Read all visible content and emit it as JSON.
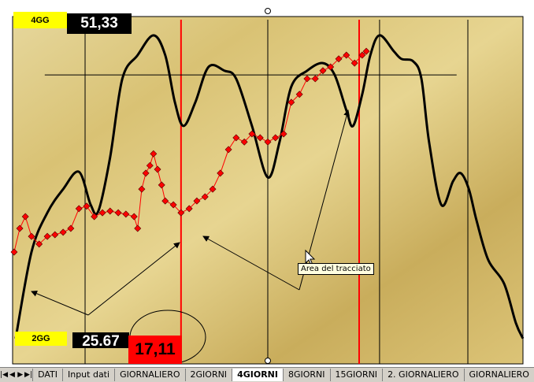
{
  "labels": {
    "top_tag": "4GG",
    "top_value": "51,33",
    "bottom_tag": "2GG",
    "bottom_value": "25.67",
    "highlight_value": "17,11"
  },
  "tooltip": "Area del tracciato",
  "tabs": [
    "DATI",
    "Input dati",
    "GIORNALIERO",
    "2GIORNI",
    "4GIORNI",
    "8GIORNI",
    "15GIORNI",
    "2.  GIORNALIERO",
    "GIORNALIERO"
  ],
  "active_tab": "4GIORNI",
  "colors": {
    "tag": "#ffff00",
    "value_bg": "#000000",
    "highlight": "#ff0000",
    "curve": "#000000",
    "markers": "#ff0000",
    "background": "#d9c274"
  },
  "chart_data": {
    "type": "line",
    "title": "",
    "axes_visible": false,
    "xlim": [
      0,
      100
    ],
    "ylim": [
      0,
      100
    ],
    "series": [
      {
        "style": "line",
        "color": "#000000",
        "points": [
          [
            0.6,
            7.3
          ],
          [
            3.7,
            32.2
          ],
          [
            6.8,
            43.5
          ],
          [
            9.9,
            50.3
          ],
          [
            13,
            55.3
          ],
          [
            15.3,
            45.8
          ],
          [
            16.8,
            44
          ],
          [
            19.1,
            59.4
          ],
          [
            21.5,
            82.1
          ],
          [
            24.5,
            88.9
          ],
          [
            27.6,
            94.6
          ],
          [
            29.9,
            88.9
          ],
          [
            31.8,
            75.3
          ],
          [
            33.5,
            68.5
          ],
          [
            35.8,
            75.3
          ],
          [
            38.4,
            85.5
          ],
          [
            41.5,
            84.4
          ],
          [
            43.8,
            82.1
          ],
          [
            46.9,
            68.5
          ],
          [
            50,
            53.7
          ],
          [
            52.3,
            63.9
          ],
          [
            54.6,
            79.8
          ],
          [
            57.7,
            84.4
          ],
          [
            60.8,
            86.6
          ],
          [
            63.1,
            83.2
          ],
          [
            65.4,
            73
          ],
          [
            66.7,
            68.5
          ],
          [
            68.5,
            77.6
          ],
          [
            70.1,
            88.9
          ],
          [
            71.9,
            94.6
          ],
          [
            74.7,
            90
          ],
          [
            76.2,
            87.8
          ],
          [
            78.5,
            87.1
          ],
          [
            80.1,
            82.1
          ],
          [
            81.6,
            63.9
          ],
          [
            84,
            45.8
          ],
          [
            86.3,
            52.6
          ],
          [
            87.8,
            54.9
          ],
          [
            89.4,
            50.3
          ],
          [
            90.9,
            41.3
          ],
          [
            93.2,
            29.9
          ],
          [
            96.3,
            23.1
          ],
          [
            98.6,
            11.8
          ],
          [
            100,
            7.3
          ]
        ]
      },
      {
        "style": "diamond-markers",
        "color": "#ff0000",
        "points": [
          [
            0.3,
            32.2
          ],
          [
            1.4,
            39
          ],
          [
            2.5,
            42.4
          ],
          [
            3.7,
            36.7
          ],
          [
            5.2,
            34.5
          ],
          [
            6.8,
            36.7
          ],
          [
            8.3,
            37.2
          ],
          [
            9.9,
            37.9
          ],
          [
            11.4,
            39
          ],
          [
            13,
            44.7
          ],
          [
            14.5,
            45.4
          ],
          [
            16,
            42.4
          ],
          [
            17.6,
            43.5
          ],
          [
            19.1,
            44
          ],
          [
            20.7,
            43.5
          ],
          [
            22.2,
            43.1
          ],
          [
            23.8,
            42.4
          ],
          [
            24.5,
            39
          ],
          [
            25.3,
            50.3
          ],
          [
            26.1,
            54.9
          ],
          [
            26.9,
            57.1
          ],
          [
            27.6,
            60.5
          ],
          [
            28.4,
            56
          ],
          [
            29.2,
            51.5
          ],
          [
            29.9,
            46.9
          ],
          [
            31.5,
            45.8
          ],
          [
            33,
            43.5
          ],
          [
            34.6,
            44.7
          ],
          [
            36.1,
            46.9
          ],
          [
            37.7,
            48.1
          ],
          [
            39.2,
            50.3
          ],
          [
            40.7,
            54.9
          ],
          [
            42.3,
            61.7
          ],
          [
            43.8,
            65.1
          ],
          [
            45.4,
            63.9
          ],
          [
            46.9,
            66.2
          ],
          [
            48.5,
            65.1
          ],
          [
            50,
            63.9
          ],
          [
            51.5,
            65.1
          ],
          [
            53.1,
            66.2
          ],
          [
            54.6,
            75.3
          ],
          [
            56.2,
            77.6
          ],
          [
            57.7,
            82.1
          ],
          [
            59.3,
            82.1
          ],
          [
            60.8,
            84.4
          ],
          [
            62.3,
            85.5
          ],
          [
            63.9,
            87.8
          ],
          [
            65.4,
            88.9
          ],
          [
            67,
            86.6
          ],
          [
            68.5,
            88.9
          ],
          [
            69.3,
            90
          ]
        ]
      }
    ],
    "vertical_lines": [
      {
        "x": 14.2,
        "color": "#000000"
      },
      {
        "x": 33,
        "color": "#ff0000"
      },
      {
        "x": 50,
        "color": "#000000"
      },
      {
        "x": 67.9,
        "color": "#ff0000"
      },
      {
        "x": 71.9,
        "color": "#000000"
      },
      {
        "x": 89.2,
        "color": "#000000"
      }
    ],
    "horizontal_line": {
      "y": 83.2,
      "x_from": 6.3,
      "x_to": 87
    }
  }
}
